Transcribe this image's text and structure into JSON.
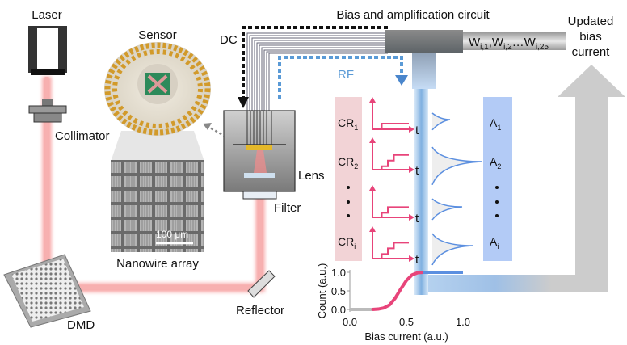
{
  "labels": {
    "laser": "Laser",
    "collimator": "Collimator",
    "sensor": "Sensor",
    "nanowire_array": "Nanowire array",
    "scale_bar": "100 μm",
    "dmd": "DMD",
    "reflector": "Reflector",
    "filter": "Filter",
    "lens": "Lens",
    "dc": "DC",
    "rf": "RF",
    "circuit": "Bias and amplification circuit",
    "weights": {
      "w": "W",
      "s1": "i,1",
      "sep1": ",",
      "s2": "i,2",
      "dots": "…",
      "s3": "i,25"
    },
    "updated": [
      "Updated",
      "bias",
      "current"
    ],
    "cr": [
      {
        "base": "CR",
        "sub": "1"
      },
      {
        "base": "CR",
        "sub": "2"
      },
      {
        "base": "CR",
        "sub": "i"
      }
    ],
    "a": [
      {
        "base": "A",
        "sub": "1"
      },
      {
        "base": "A",
        "sub": "2"
      },
      {
        "base": "A",
        "sub": "i"
      }
    ],
    "t": "t"
  },
  "colors": {
    "beam": "#f48c8c",
    "pink": "#e8447a",
    "blue": "#5b8fe0",
    "cr_box": "#f2d3d6",
    "a_box": "#b3cbf6",
    "gray_arrow": "#cccccc"
  },
  "chart_data": {
    "type": "line",
    "xlabel": "Bias current (a.u.)",
    "ylabel": "Count (a.u.)",
    "xlim": [
      0,
      1
    ],
    "ylim": [
      0,
      1
    ],
    "xticks": [
      "0.0",
      "0.5",
      "1.0"
    ],
    "yticks": [
      "0.0",
      "0.5",
      "1.0"
    ],
    "x": [
      0.2,
      0.25,
      0.3,
      0.35,
      0.4,
      0.45,
      0.5,
      0.55,
      0.6,
      0.65
    ],
    "y": [
      0.0,
      0.01,
      0.04,
      0.12,
      0.3,
      0.55,
      0.78,
      0.93,
      0.99,
      1.0
    ]
  }
}
